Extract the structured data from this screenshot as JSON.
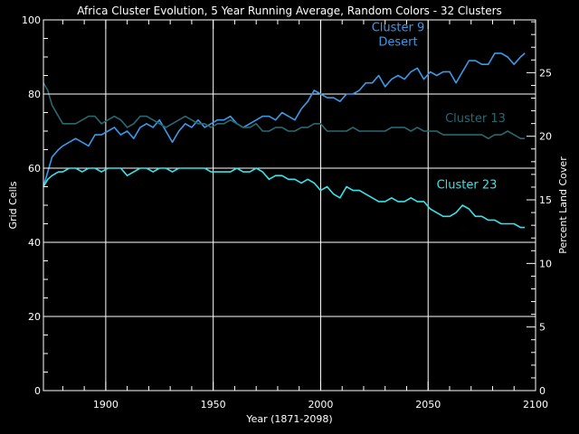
{
  "chart_data": {
    "type": "line",
    "title": "Africa Cluster Evolution, 5 Year Running Average, Random Colors - 32 Clusters",
    "xlabel": "Year (1871-2098)",
    "ylabel": "Grid Cells",
    "y2label": "Percent Land Cover",
    "xlim": [
      1871,
      2100
    ],
    "ylim": [
      0,
      100
    ],
    "y2lim": [
      0,
      29.15
    ],
    "xticks": [
      1900,
      1950,
      2000,
      2050,
      2100
    ],
    "yticks": [
      0,
      20,
      40,
      60,
      80,
      100
    ],
    "y2ticks": [
      0,
      5,
      10,
      15,
      20,
      25
    ],
    "grid": true,
    "colors": {
      "background": "#000000",
      "axes": "#ffffff",
      "cluster9": "#3a9ae8",
      "cluster13": "#2a6870",
      "cluster23": "#37e3e8"
    },
    "series": [
      {
        "name": "Cluster 9",
        "annotation": [
          "Cluster 9",
          "Desert"
        ],
        "color": "#3a9ae8",
        "x": [
          1871,
          1873,
          1875,
          1878,
          1880,
          1883,
          1886,
          1889,
          1892,
          1895,
          1898,
          1901,
          1904,
          1907,
          1910,
          1913,
          1916,
          1919,
          1922,
          1925,
          1928,
          1931,
          1934,
          1937,
          1940,
          1943,
          1946,
          1949,
          1952,
          1955,
          1958,
          1961,
          1964,
          1967,
          1970,
          1973,
          1976,
          1979,
          1982,
          1985,
          1988,
          1991,
          1994,
          1997,
          2000,
          2003,
          2006,
          2009,
          2012,
          2015,
          2018,
          2021,
          2024,
          2027,
          2030,
          2033,
          2036,
          2039,
          2042,
          2045,
          2048,
          2051,
          2054,
          2057,
          2060,
          2063,
          2066,
          2069,
          2072,
          2075,
          2078,
          2081,
          2084,
          2087,
          2090,
          2093,
          2095
        ],
        "y": [
          55,
          59,
          63,
          65,
          66,
          67,
          68,
          67,
          66,
          69,
          69,
          70,
          71,
          69,
          70,
          68,
          71,
          72,
          71,
          73,
          70,
          67,
          70,
          72,
          71,
          73,
          71,
          72,
          73,
          73,
          74,
          72,
          71,
          72,
          73,
          74,
          74,
          73,
          75,
          74,
          73,
          76,
          78,
          81,
          80,
          79,
          79,
          78,
          80,
          80,
          81,
          83,
          83,
          85,
          82,
          84,
          85,
          84,
          86,
          87,
          84,
          86,
          85,
          86,
          86,
          83,
          86,
          89,
          89,
          88,
          88,
          91,
          91,
          90,
          88,
          90,
          91
        ]
      },
      {
        "name": "Cluster 13",
        "annotation": [
          "Cluster 13"
        ],
        "color": "#2a6870",
        "x": [
          1871,
          1873,
          1875,
          1878,
          1880,
          1883,
          1886,
          1889,
          1892,
          1895,
          1898,
          1901,
          1904,
          1907,
          1910,
          1913,
          1916,
          1919,
          1922,
          1925,
          1928,
          1931,
          1934,
          1937,
          1940,
          1943,
          1946,
          1949,
          1952,
          1955,
          1958,
          1961,
          1964,
          1967,
          1970,
          1973,
          1976,
          1979,
          1982,
          1985,
          1988,
          1991,
          1994,
          1997,
          2000,
          2003,
          2006,
          2009,
          2012,
          2015,
          2018,
          2021,
          2024,
          2027,
          2030,
          2033,
          2036,
          2039,
          2042,
          2045,
          2048,
          2051,
          2054,
          2057,
          2060,
          2063,
          2066,
          2069,
          2072,
          2075,
          2078,
          2081,
          2084,
          2087,
          2090,
          2093,
          2095
        ],
        "y": [
          83,
          81,
          77,
          74,
          72,
          72,
          72,
          73,
          74,
          74,
          72,
          73,
          74,
          73,
          71,
          72,
          74,
          74,
          73,
          72,
          71,
          72,
          73,
          74,
          73,
          72,
          72,
          71,
          72,
          72,
          73,
          72,
          71,
          71,
          72,
          70,
          70,
          71,
          71,
          70,
          70,
          71,
          71,
          72,
          72,
          70,
          70,
          70,
          70,
          71,
          70,
          70,
          70,
          70,
          70,
          71,
          71,
          71,
          70,
          71,
          70,
          70,
          70,
          69,
          69,
          69,
          69,
          69,
          69,
          69,
          68,
          69,
          69,
          70,
          69,
          68,
          68
        ]
      },
      {
        "name": "Cluster 23",
        "annotation": [
          "Cluster 23"
        ],
        "color": "#37e3e8",
        "x": [
          1871,
          1873,
          1875,
          1878,
          1880,
          1883,
          1886,
          1889,
          1892,
          1895,
          1898,
          1901,
          1904,
          1907,
          1910,
          1913,
          1916,
          1919,
          1922,
          1925,
          1928,
          1931,
          1934,
          1937,
          1940,
          1943,
          1946,
          1949,
          1952,
          1955,
          1958,
          1961,
          1964,
          1967,
          1970,
          1973,
          1976,
          1979,
          1982,
          1985,
          1988,
          1991,
          1994,
          1997,
          2000,
          2003,
          2006,
          2009,
          2012,
          2015,
          2018,
          2021,
          2024,
          2027,
          2030,
          2033,
          2036,
          2039,
          2042,
          2045,
          2048,
          2051,
          2054,
          2057,
          2060,
          2063,
          2066,
          2069,
          2072,
          2075,
          2078,
          2081,
          2084,
          2087,
          2090,
          2093,
          2095
        ],
        "y": [
          55,
          57,
          58,
          59,
          59,
          60,
          60,
          59,
          60,
          60,
          59,
          60,
          60,
          60,
          58,
          59,
          60,
          60,
          59,
          60,
          60,
          59,
          60,
          60,
          60,
          60,
          60,
          59,
          59,
          59,
          59,
          60,
          59,
          59,
          60,
          59,
          57,
          58,
          58,
          57,
          57,
          56,
          57,
          56,
          54,
          55,
          53,
          52,
          55,
          54,
          54,
          53,
          52,
          51,
          51,
          52,
          51,
          51,
          52,
          51,
          51,
          49,
          48,
          47,
          47,
          48,
          50,
          49,
          47,
          47,
          46,
          46,
          45,
          45,
          45,
          44,
          44
        ]
      }
    ]
  }
}
